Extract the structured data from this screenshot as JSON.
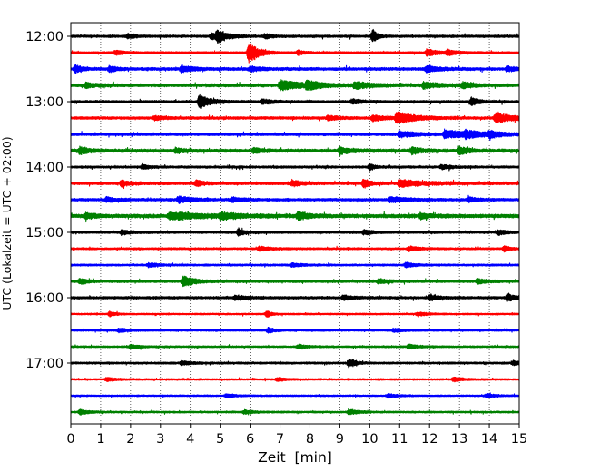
{
  "chart_data": {
    "type": "line",
    "subtype": "helicorder-seismogram",
    "xlabel": "Zeit  [min]",
    "ylabel": "UTC (Lokalzeit = UTC + 02:00)",
    "xlim": [
      0,
      15
    ],
    "x_ticks": [
      "0",
      "1",
      "2",
      "3",
      "4",
      "5",
      "6",
      "7",
      "8",
      "9",
      "10",
      "11",
      "12",
      "13",
      "14",
      "15"
    ],
    "y_ticks": [
      "12:00",
      "13:00",
      "14:00",
      "15:00",
      "16:00",
      "17:00"
    ],
    "grid": "vertical dotted at each minute",
    "trace_colors": [
      "#000000",
      "#ff0000",
      "#0000ff",
      "#008000"
    ],
    "trace_interval_min": 15,
    "traces": [
      {
        "start": "12:00",
        "color": "#000000",
        "noise": 1.2,
        "events": [
          [
            4.9,
            5.5,
            0.35
          ],
          [
            10.1,
            7.0,
            0.15
          ],
          [
            4.7,
            3.5,
            0.25
          ],
          [
            1.9,
            2.5,
            0.2
          ],
          [
            6.5,
            2.5,
            0.2
          ]
        ]
      },
      {
        "start": "12:15",
        "color": "#ff0000",
        "noise": 1.0,
        "events": [
          [
            5.95,
            12.0,
            0.3
          ],
          [
            1.5,
            2.5,
            0.25
          ],
          [
            7.6,
            2.5,
            0.2
          ],
          [
            11.9,
            3.5,
            0.4
          ],
          [
            12.6,
            2.5,
            0.3
          ]
        ]
      },
      {
        "start": "12:30",
        "color": "#0000ff",
        "noise": 1.4,
        "events": [
          [
            0.15,
            4.0,
            0.2
          ],
          [
            1.3,
            3.0,
            0.2
          ],
          [
            3.7,
            3.5,
            0.35
          ],
          [
            11.9,
            3.0,
            0.4
          ],
          [
            14.6,
            2.5,
            0.3
          ],
          [
            6.0,
            2.5,
            0.3
          ]
        ]
      },
      {
        "start": "12:45",
        "color": "#008000",
        "noise": 1.5,
        "events": [
          [
            7.0,
            5.0,
            0.7
          ],
          [
            7.9,
            4.0,
            0.4
          ],
          [
            9.5,
            3.5,
            0.5
          ],
          [
            11.8,
            3.5,
            0.4
          ],
          [
            13.1,
            3.0,
            0.3
          ],
          [
            0.5,
            2.5,
            0.3
          ]
        ]
      },
      {
        "start": "13:00",
        "color": "#000000",
        "noise": 1.2,
        "events": [
          [
            4.3,
            7.0,
            0.35
          ],
          [
            13.4,
            4.0,
            0.25
          ],
          [
            6.4,
            2.5,
            0.3
          ],
          [
            9.4,
            2.5,
            0.3
          ]
        ]
      },
      {
        "start": "13:15",
        "color": "#ff0000",
        "noise": 1.3,
        "events": [
          [
            10.9,
            6.0,
            0.6
          ],
          [
            14.2,
            5.0,
            0.6
          ],
          [
            10.1,
            3.0,
            0.4
          ],
          [
            8.6,
            2.5,
            0.3
          ],
          [
            2.8,
            2.0,
            0.3
          ]
        ]
      },
      {
        "start": "13:30",
        "color": "#0000ff",
        "noise": 1.3,
        "events": [
          [
            12.5,
            4.0,
            1.0
          ],
          [
            11.0,
            3.0,
            0.5
          ],
          [
            14.0,
            3.0,
            0.3
          ],
          [
            13.2,
            3.0,
            0.4
          ]
        ]
      },
      {
        "start": "13:45",
        "color": "#008000",
        "noise": 1.6,
        "events": [
          [
            0.3,
            3.5,
            0.3
          ],
          [
            9.0,
            3.0,
            0.4
          ],
          [
            13.0,
            4.0,
            0.3
          ],
          [
            11.4,
            3.0,
            0.4
          ],
          [
            3.5,
            2.5,
            0.3
          ],
          [
            6.1,
            2.5,
            0.3
          ]
        ]
      },
      {
        "start": "14:00",
        "color": "#000000",
        "noise": 1.1,
        "events": [
          [
            10.0,
            3.5,
            0.15
          ],
          [
            2.4,
            2.5,
            0.2
          ],
          [
            12.4,
            2.5,
            0.3
          ]
        ]
      },
      {
        "start": "14:15",
        "color": "#ff0000",
        "noise": 1.4,
        "events": [
          [
            9.8,
            4.5,
            0.2
          ],
          [
            11.0,
            3.5,
            0.8
          ],
          [
            1.7,
            3.0,
            0.3
          ],
          [
            7.4,
            3.0,
            0.3
          ],
          [
            4.2,
            2.5,
            0.3
          ]
        ]
      },
      {
        "start": "14:30",
        "color": "#0000ff",
        "noise": 1.3,
        "events": [
          [
            3.6,
            3.5,
            0.4
          ],
          [
            10.7,
            3.0,
            0.5
          ],
          [
            1.2,
            2.5,
            0.3
          ],
          [
            13.3,
            2.5,
            0.3
          ],
          [
            5.4,
            2.5,
            0.3
          ]
        ]
      },
      {
        "start": "14:45",
        "color": "#008000",
        "noise": 1.8,
        "events": [
          [
            3.3,
            3.5,
            1.1
          ],
          [
            7.6,
            4.0,
            0.3
          ],
          [
            5.0,
            3.0,
            0.5
          ],
          [
            0.5,
            2.5,
            0.3
          ],
          [
            11.7,
            2.5,
            0.3
          ]
        ]
      },
      {
        "start": "15:00",
        "color": "#000000",
        "noise": 1.1,
        "events": [
          [
            5.6,
            3.5,
            0.2
          ],
          [
            1.7,
            2.5,
            0.3
          ],
          [
            9.8,
            2.5,
            0.3
          ],
          [
            14.3,
            2.5,
            0.3
          ]
        ]
      },
      {
        "start": "15:15",
        "color": "#ff0000",
        "noise": 1.0,
        "events": [
          [
            14.5,
            3.5,
            0.15
          ],
          [
            6.3,
            2.5,
            0.3
          ],
          [
            11.3,
            2.5,
            0.3
          ]
        ]
      },
      {
        "start": "15:30",
        "color": "#0000ff",
        "noise": 1.0,
        "events": [
          [
            11.2,
            2.5,
            0.3
          ],
          [
            2.6,
            2.0,
            0.3
          ],
          [
            7.4,
            2.0,
            0.3
          ]
        ]
      },
      {
        "start": "15:45",
        "color": "#008000",
        "noise": 1.2,
        "events": [
          [
            3.75,
            6.0,
            0.35
          ],
          [
            0.3,
            3.0,
            0.25
          ],
          [
            10.3,
            2.5,
            0.3
          ],
          [
            13.6,
            2.5,
            0.3
          ]
        ]
      },
      {
        "start": "16:00",
        "color": "#000000",
        "noise": 1.2,
        "events": [
          [
            14.6,
            3.0,
            0.4
          ],
          [
            5.5,
            2.5,
            0.3
          ],
          [
            9.1,
            2.5,
            0.3
          ],
          [
            12.0,
            2.5,
            0.3
          ]
        ]
      },
      {
        "start": "16:15",
        "color": "#ff0000",
        "noise": 0.8,
        "events": [
          [
            1.3,
            2.5,
            0.2
          ],
          [
            6.55,
            3.5,
            0.15
          ],
          [
            11.6,
            2.0,
            0.3
          ]
        ]
      },
      {
        "start": "16:30",
        "color": "#0000ff",
        "noise": 0.9,
        "events": [
          [
            6.6,
            3.0,
            0.2
          ],
          [
            1.6,
            2.0,
            0.3
          ],
          [
            10.8,
            2.0,
            0.3
          ]
        ]
      },
      {
        "start": "16:45",
        "color": "#008000",
        "noise": 0.9,
        "events": [
          [
            2.0,
            2.0,
            0.3
          ],
          [
            11.3,
            2.5,
            0.3
          ],
          [
            7.6,
            2.0,
            0.3
          ]
        ]
      },
      {
        "start": "17:00",
        "color": "#000000",
        "noise": 1.0,
        "events": [
          [
            9.3,
            4.5,
            0.2
          ],
          [
            14.8,
            2.5,
            0.2
          ],
          [
            3.7,
            2.0,
            0.3
          ]
        ]
      },
      {
        "start": "17:15",
        "color": "#ff0000",
        "noise": 0.8,
        "events": [
          [
            12.8,
            2.5,
            0.3
          ],
          [
            1.2,
            2.0,
            0.3
          ],
          [
            6.9,
            2.0,
            0.3
          ]
        ]
      },
      {
        "start": "17:30",
        "color": "#0000ff",
        "noise": 0.8,
        "events": [
          [
            5.2,
            2.0,
            0.3
          ],
          [
            10.6,
            2.0,
            0.3
          ],
          [
            13.9,
            2.0,
            0.3
          ]
        ]
      },
      {
        "start": "17:45",
        "color": "#008000",
        "noise": 0.9,
        "events": [
          [
            9.3,
            3.0,
            0.3
          ],
          [
            0.3,
            2.5,
            0.3
          ],
          [
            5.8,
            2.0,
            0.3
          ]
        ]
      }
    ]
  }
}
